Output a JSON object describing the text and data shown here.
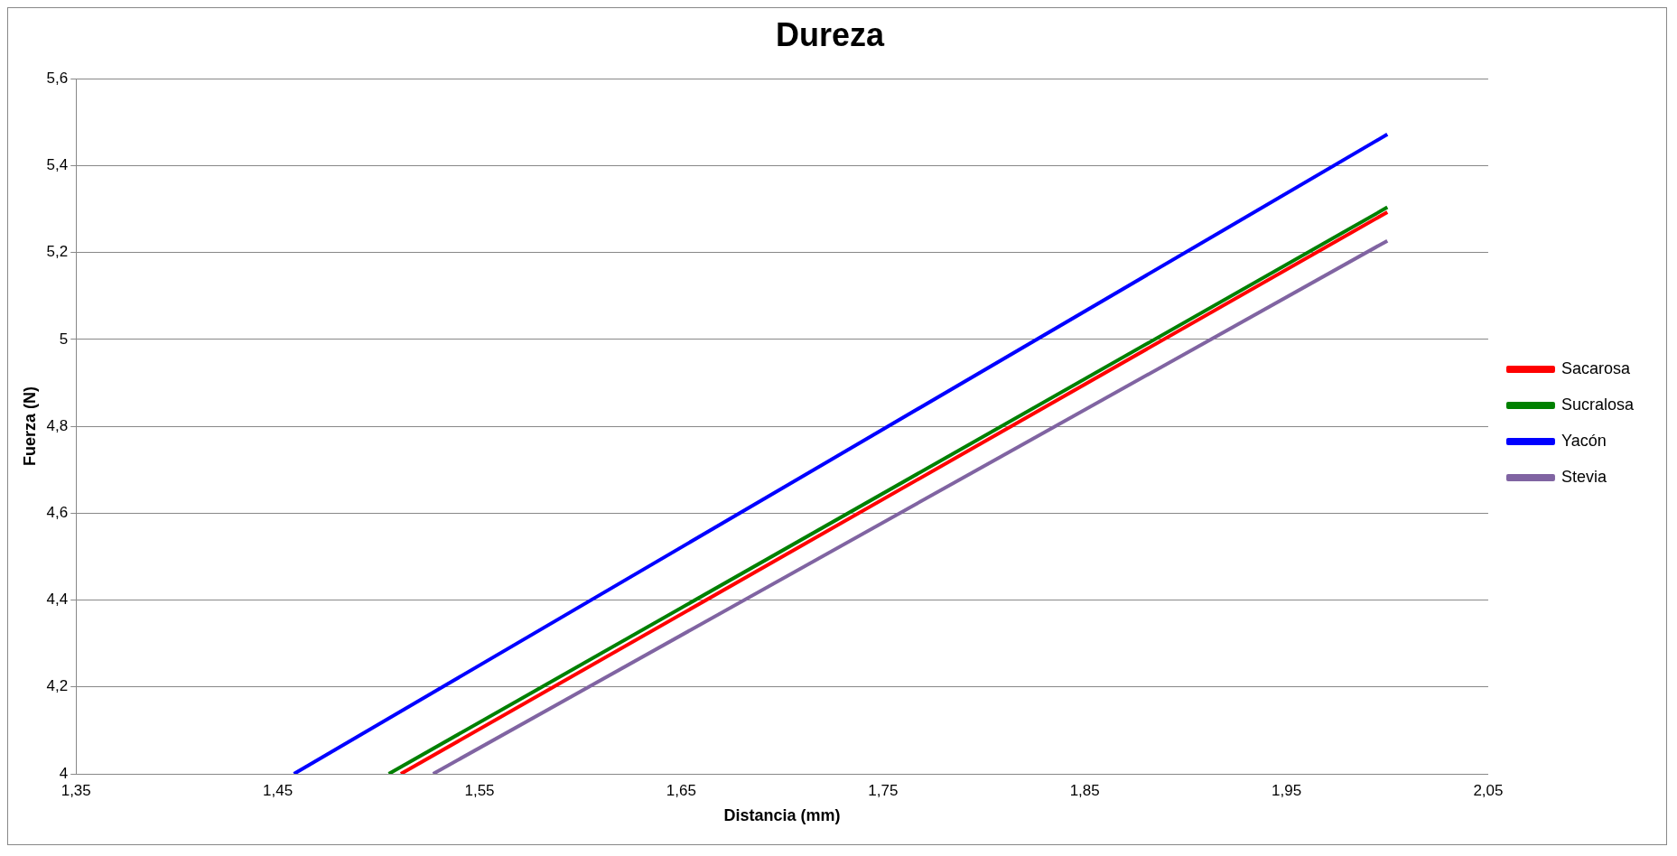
{
  "chart_data": {
    "type": "line",
    "title": "Dureza",
    "xlabel": "Distancia (mm)",
    "ylabel": "Fuerza (N)",
    "xlim": [
      1.35,
      2.05
    ],
    "ylim": [
      4,
      5.6
    ],
    "xticks": [
      {
        "value": 1.35,
        "label": "1,35"
      },
      {
        "value": 1.45,
        "label": "1,45"
      },
      {
        "value": 1.55,
        "label": "1,55"
      },
      {
        "value": 1.65,
        "label": "1,65"
      },
      {
        "value": 1.75,
        "label": "1,75"
      },
      {
        "value": 1.85,
        "label": "1,85"
      },
      {
        "value": 1.95,
        "label": "1,95"
      },
      {
        "value": 2.05,
        "label": "2,05"
      }
    ],
    "yticks": [
      4,
      {
        "value": 4.2,
        "label": "4,2"
      },
      {
        "value": 4.4,
        "label": "4,4"
      },
      {
        "value": 4.6,
        "label": "4,6"
      },
      {
        "value": 4.8,
        "label": "4,8"
      },
      5,
      {
        "value": 5.2,
        "label": "5,2"
      },
      {
        "value": 5.4,
        "label": "5,4"
      },
      {
        "value": 5.6,
        "label": "5,6"
      }
    ],
    "series": [
      {
        "name": "Sacarosa",
        "color": "#ff0000",
        "x": [
          1.511,
          2.0
        ],
        "values": [
          4,
          5.293
        ]
      },
      {
        "name": "Sucralosa",
        "color": "#008000",
        "x": [
          1.505,
          2.0
        ],
        "values": [
          4,
          5.304
        ]
      },
      {
        "name": "Yacón",
        "color": "#0000ff",
        "x": [
          1.458,
          2.0
        ],
        "values": [
          4,
          5.472
        ]
      },
      {
        "name": "Stevia",
        "color": "#8064a2",
        "x": [
          1.527,
          2.0
        ],
        "values": [
          4,
          5.227
        ]
      }
    ],
    "grid": "y",
    "legend": "right",
    "marker": "none",
    "line_style": "solid"
  }
}
